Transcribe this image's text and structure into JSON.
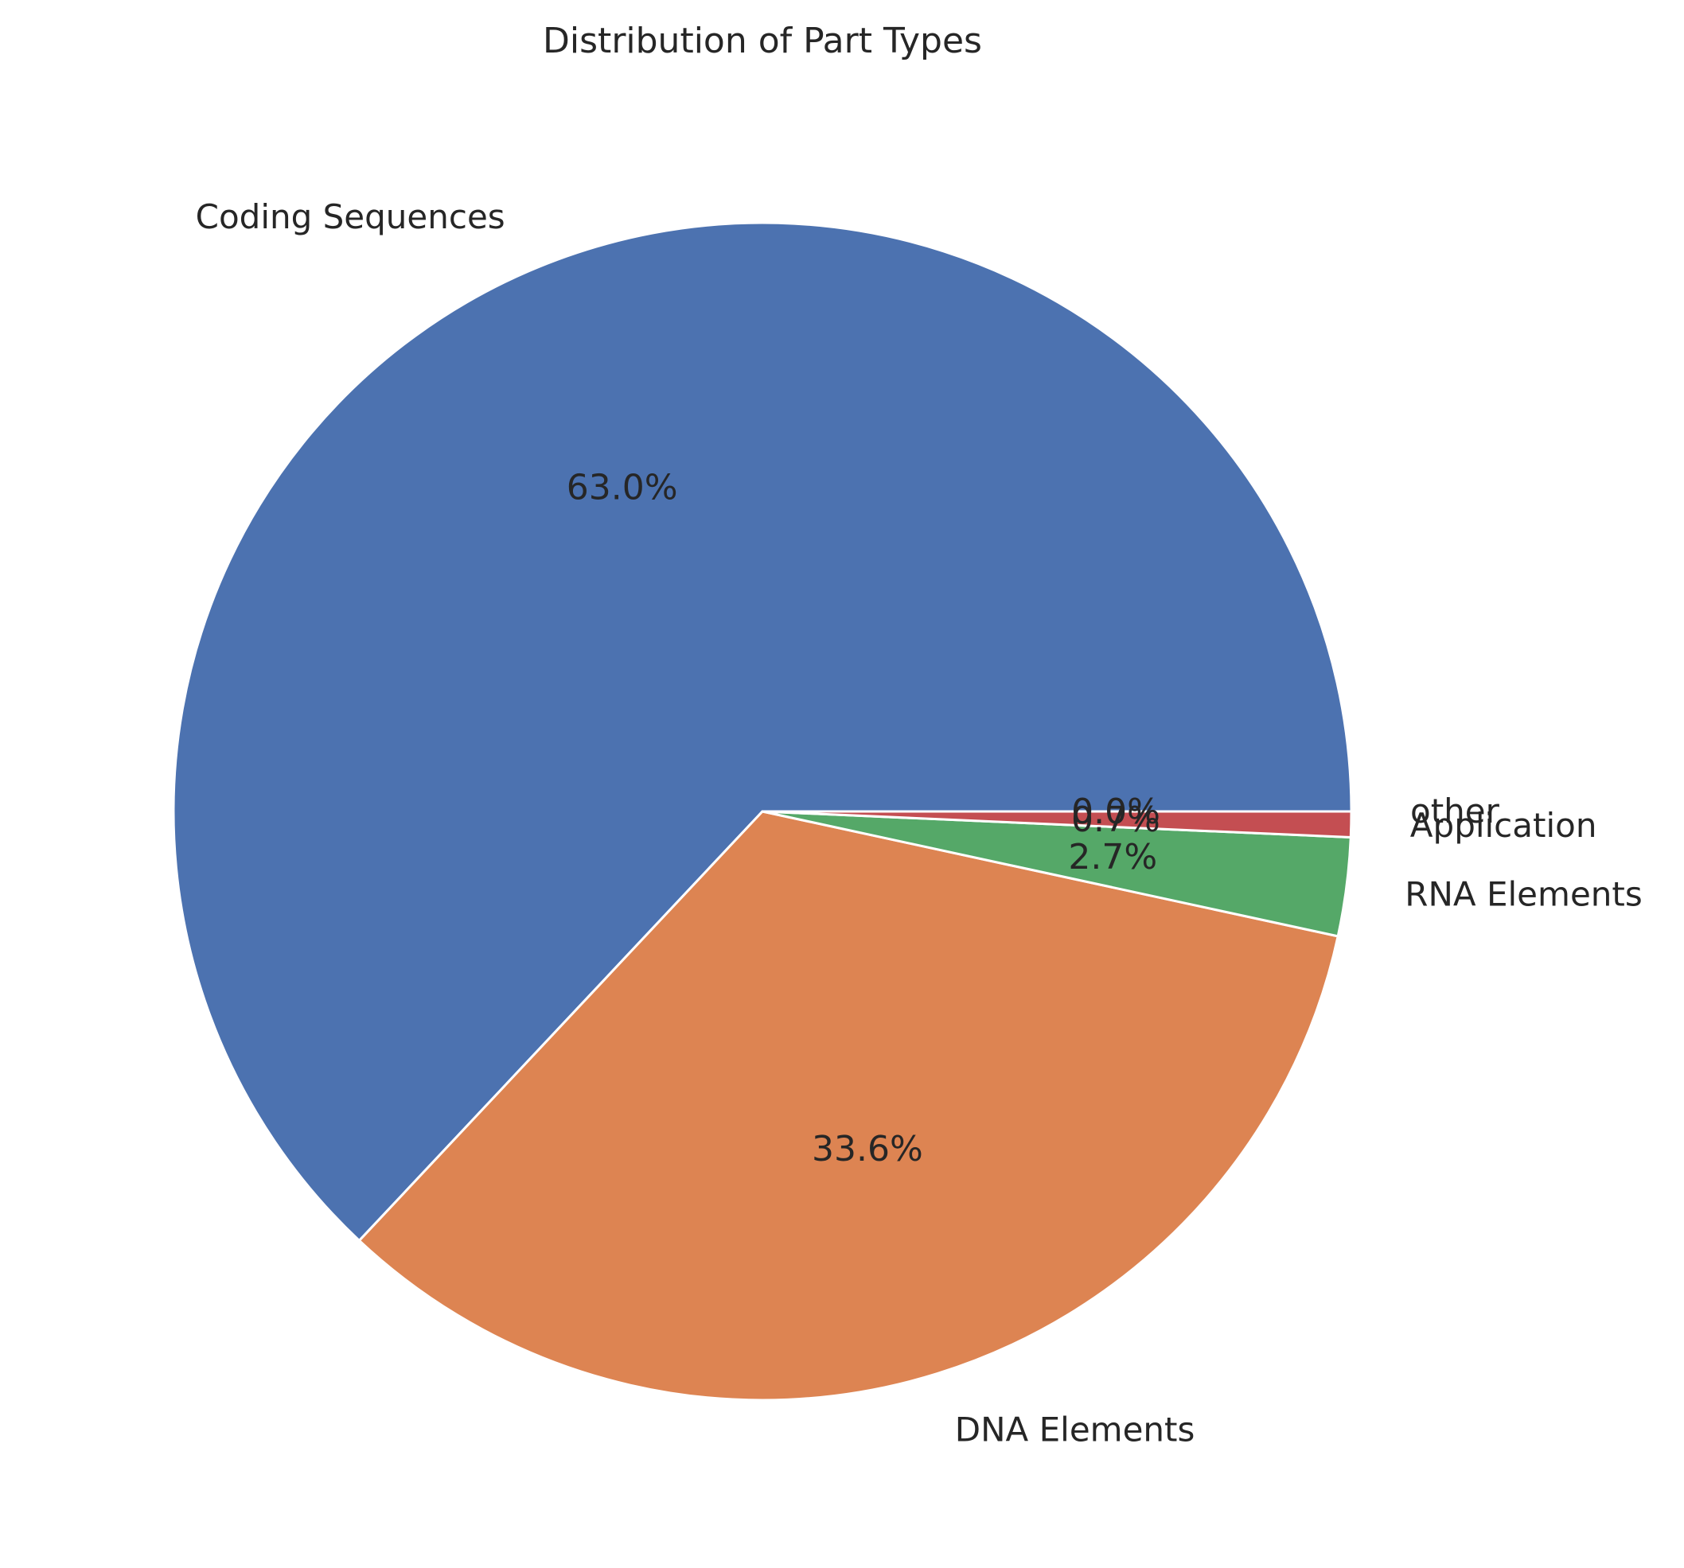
{
  "chart_data": {
    "type": "pie",
    "title": "Distribution of Part Types",
    "categories": [
      "Coding Sequences",
      "DNA Elements",
      "RNA Elements",
      "Application",
      "other"
    ],
    "values": [
      63.0,
      33.6,
      2.7,
      0.7,
      0.0
    ],
    "value_labels": [
      "63.0%",
      "33.6%",
      "2.7%",
      "0.7%",
      "0.0%"
    ],
    "colors": [
      "#4c72b0",
      "#dd8452",
      "#55a868",
      "#c44e52",
      "#8172b3"
    ],
    "start_angle_deg": 0,
    "direction": "counterclockwise",
    "edge_color": "#ffffff",
    "legend": "none"
  }
}
